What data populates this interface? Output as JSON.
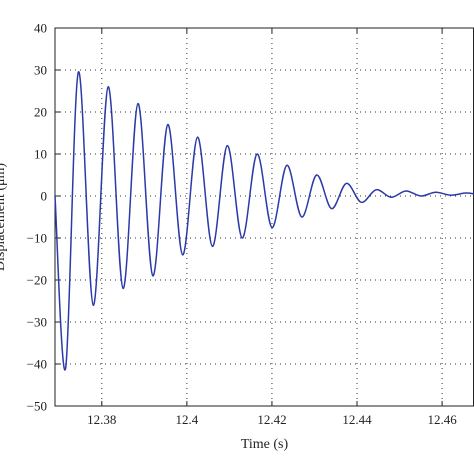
{
  "chart_data": {
    "type": "line",
    "title": "",
    "xlabel": "Time (s)",
    "ylabel": "Displacement (μm)",
    "xlim": [
      12.369,
      12.4675
    ],
    "ylim": [
      -50,
      40
    ],
    "grid": true,
    "x_ticks": [
      12.38,
      12.4,
      12.42,
      12.44,
      12.46
    ],
    "x_tick_labels": [
      "12.38",
      "12.4",
      "12.42",
      "12.44",
      "12.46"
    ],
    "y_ticks": [
      40,
      30,
      20,
      10,
      0,
      -10,
      -20,
      -30,
      -40,
      -50
    ],
    "y_tick_labels": [
      "40",
      "30",
      "20",
      "10",
      "0",
      "−10",
      "−20",
      "−30",
      "−40",
      "−50"
    ],
    "series": [
      {
        "color": "#2b3aa8",
        "x": [
          12.369,
          12.3715,
          12.3745,
          12.378,
          12.3815,
          12.385,
          12.3885,
          12.392,
          12.3955,
          12.399,
          12.4025,
          12.406,
          12.4095,
          12.413,
          12.4165,
          12.42,
          12.4235,
          12.427,
          12.4305,
          12.434,
          12.4375,
          12.441,
          12.4445,
          12.448,
          12.4515,
          12.455,
          12.4585,
          12.462,
          12.4655,
          12.4675
        ],
        "y": [
          0,
          -41,
          29.5,
          -26,
          26,
          -22,
          22,
          -19,
          17,
          -14,
          14,
          -12,
          12,
          -10,
          10,
          -7.5,
          7.3,
          -5,
          5,
          -3,
          3,
          -1.5,
          1.5,
          -0.3,
          1.2,
          0,
          0.9,
          0.2,
          0.7,
          0.5
        ]
      }
    ]
  }
}
